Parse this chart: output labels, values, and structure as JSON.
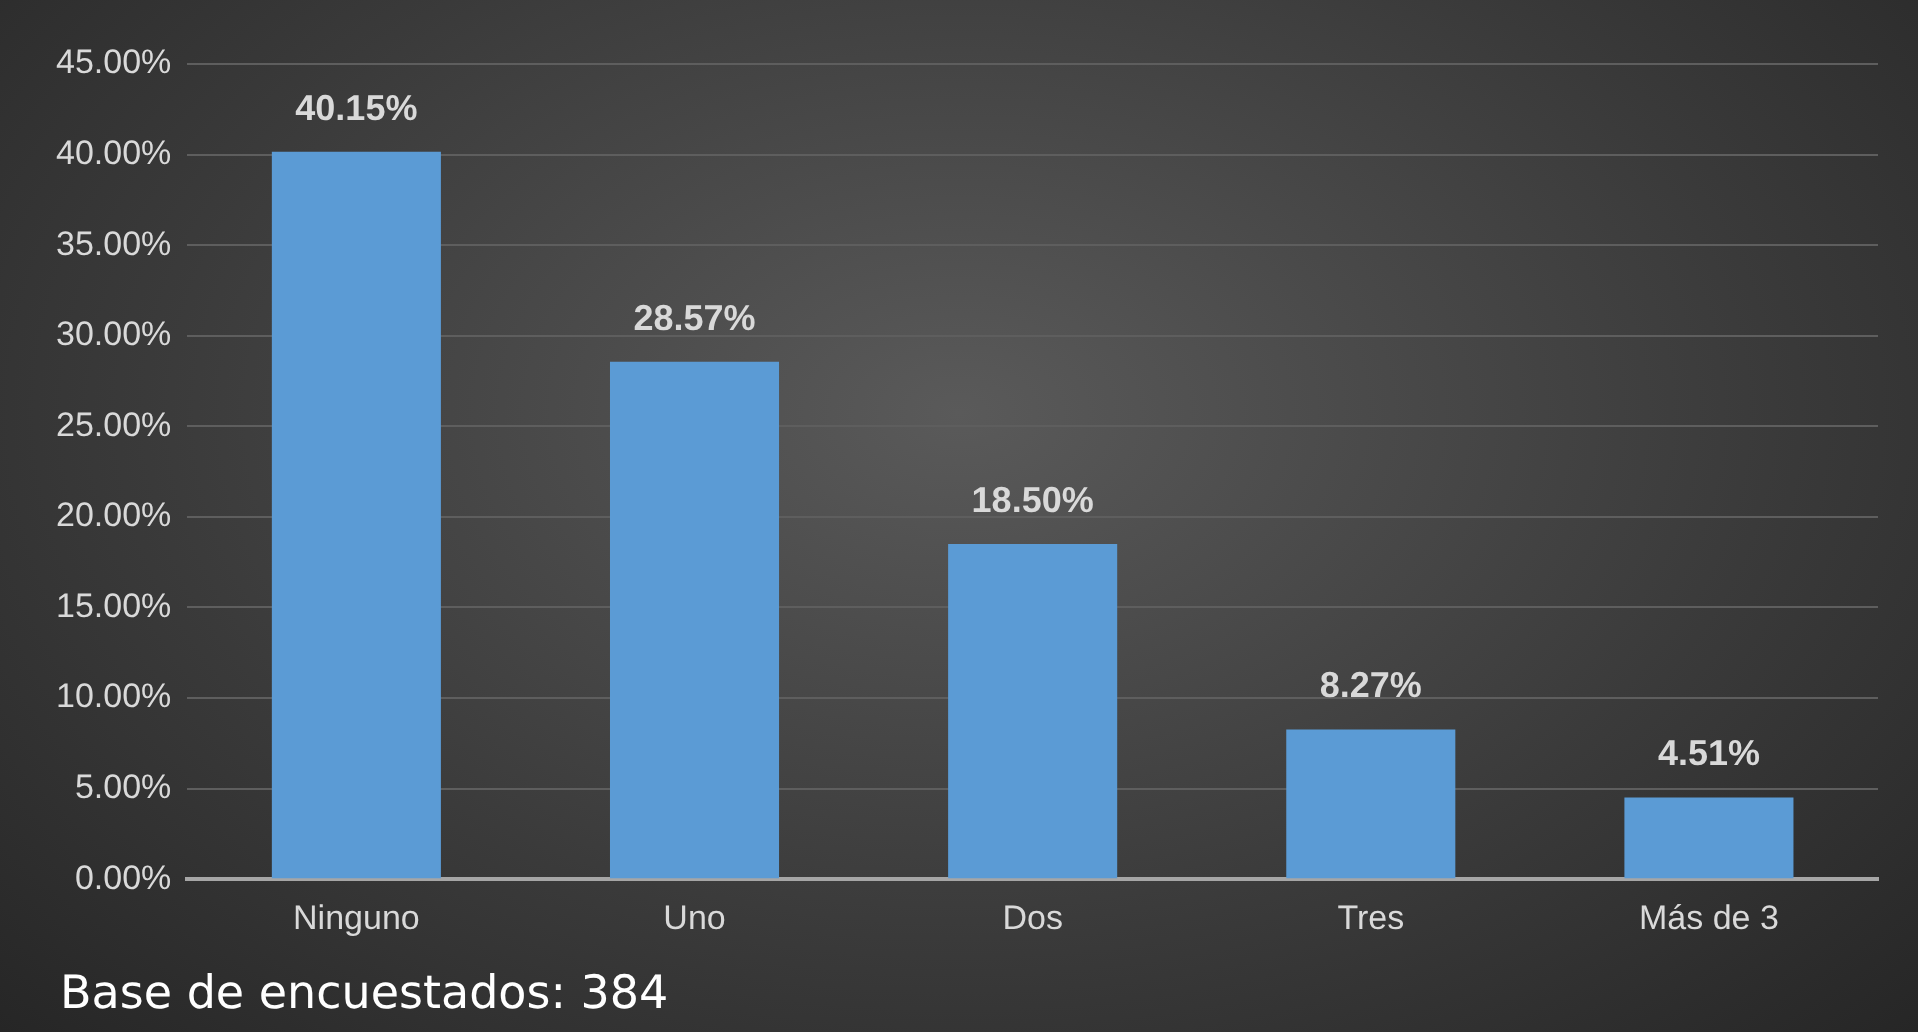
{
  "chart_data": {
    "type": "bar",
    "categories": [
      "Ninguno",
      "Uno",
      "Dos",
      "Tres",
      "Más de 3"
    ],
    "values": [
      40.15,
      28.57,
      18.5,
      8.27,
      4.51
    ],
    "value_labels": [
      "40.15%",
      "28.57%",
      "18.50%",
      "8.27%",
      "4.51%"
    ],
    "color": "#5b9bd5",
    "ylim": [
      0,
      45
    ],
    "yticks": [
      {
        "value": 0,
        "label": "0.00%"
      },
      {
        "value": 5,
        "label": "5.00%"
      },
      {
        "value": 10,
        "label": "10.00%"
      },
      {
        "value": 15,
        "label": "15.00%"
      },
      {
        "value": 20,
        "label": "20.00%"
      },
      {
        "value": 25,
        "label": "25.00%"
      },
      {
        "value": 30,
        "label": "30.00%"
      },
      {
        "value": 35,
        "label": "35.00%"
      },
      {
        "value": 40,
        "label": "40.00%"
      },
      {
        "value": 45,
        "label": "45.00%"
      }
    ],
    "grid": "y",
    "legend": false,
    "annotations": [
      "Base de encuestados: 384"
    ]
  }
}
